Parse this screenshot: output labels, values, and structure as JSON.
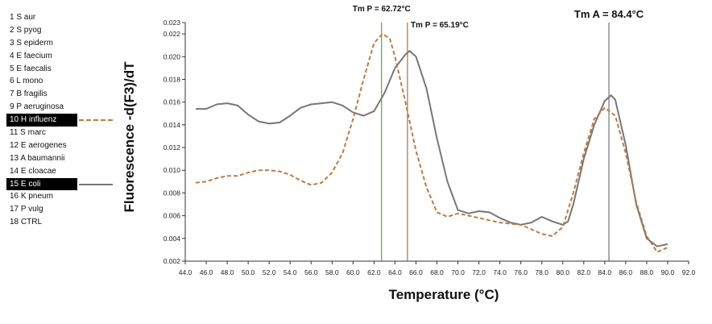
{
  "sidebar": {
    "items": [
      {
        "label": "1 S aur"
      },
      {
        "label": "2 S pyog"
      },
      {
        "label": "3 S epiderm"
      },
      {
        "label": "4 E faecium"
      },
      {
        "label": "5 E faecalis"
      },
      {
        "label": "6 L mono"
      },
      {
        "label": "7 B fragilis"
      },
      {
        "label": "9 P aeruginosa"
      },
      {
        "label": "10 H influenz",
        "selected": true,
        "line_style": "dashed",
        "color": "#c07a3e"
      },
      {
        "label": "11 S marc"
      },
      {
        "label": "12 E aerogenes"
      },
      {
        "label": "13 A baumannii"
      },
      {
        "label": "14 E cloacae"
      },
      {
        "label": "15 E coli",
        "selected": true,
        "line_style": "solid",
        "color": "#777777"
      },
      {
        "label": "16 K pneum"
      },
      {
        "label": "17 P vulg"
      },
      {
        "label": "18 CTRL"
      }
    ]
  },
  "chart_data": {
    "type": "line",
    "xlabel": "Temperature (°C)",
    "ylabel": "Fluorescence -d(F3)/dT",
    "xlim": [
      44.0,
      92.0
    ],
    "ylim": [
      0.002,
      0.023
    ],
    "x_ticks": [
      "44.0",
      "46.0",
      "48.0",
      "50.0",
      "52.0",
      "54.0",
      "56.0",
      "58.0",
      "60.0",
      "62.0",
      "64.0",
      "66.0",
      "68.0",
      "70.0",
      "72.0",
      "74.0",
      "76.0",
      "78.0",
      "80.0",
      "82.0",
      "84.0",
      "86.0",
      "88.0",
      "90.0",
      "92.0"
    ],
    "y_ticks": [
      "0.002",
      "0.004",
      "0.006",
      "0.008",
      "0.010",
      "0.012",
      "0.014",
      "0.016",
      "0.018",
      "0.020",
      "0.022",
      "0.023"
    ],
    "grid": false,
    "series": [
      {
        "name": "15 E coli",
        "color": "#777777",
        "style": "solid",
        "points": [
          [
            45.0,
            0.0154
          ],
          [
            46.0,
            0.0154
          ],
          [
            47.0,
            0.0158
          ],
          [
            48.0,
            0.0159
          ],
          [
            49.0,
            0.0157
          ],
          [
            50.0,
            0.0149
          ],
          [
            51.0,
            0.0143
          ],
          [
            52.0,
            0.0141
          ],
          [
            53.0,
            0.0142
          ],
          [
            54.0,
            0.0148
          ],
          [
            55.0,
            0.0155
          ],
          [
            56.0,
            0.0158
          ],
          [
            57.0,
            0.0159
          ],
          [
            58.0,
            0.016
          ],
          [
            59.0,
            0.0157
          ],
          [
            60.0,
            0.0151
          ],
          [
            61.0,
            0.0148
          ],
          [
            62.0,
            0.0152
          ],
          [
            63.0,
            0.0168
          ],
          [
            64.0,
            0.019
          ],
          [
            65.0,
            0.0202
          ],
          [
            65.4,
            0.0205
          ],
          [
            66.0,
            0.02
          ],
          [
            67.0,
            0.0172
          ],
          [
            68.0,
            0.0128
          ],
          [
            69.0,
            0.009
          ],
          [
            70.0,
            0.0065
          ],
          [
            71.0,
            0.0062
          ],
          [
            72.0,
            0.0064
          ],
          [
            73.0,
            0.0063
          ],
          [
            74.0,
            0.0058
          ],
          [
            75.0,
            0.0054
          ],
          [
            76.0,
            0.0052
          ],
          [
            77.0,
            0.0054
          ],
          [
            78.0,
            0.0059
          ],
          [
            79.0,
            0.0055
          ],
          [
            80.0,
            0.0052
          ],
          [
            80.5,
            0.0055
          ],
          [
            81.0,
            0.007
          ],
          [
            82.0,
            0.011
          ],
          [
            83.0,
            0.014
          ],
          [
            84.0,
            0.0161
          ],
          [
            84.6,
            0.0166
          ],
          [
            85.0,
            0.0162
          ],
          [
            86.0,
            0.0122
          ],
          [
            87.0,
            0.007
          ],
          [
            88.0,
            0.004
          ],
          [
            89.0,
            0.0033
          ],
          [
            90.0,
            0.0035
          ]
        ]
      },
      {
        "name": "10 H influenz",
        "color": "#c07a3e",
        "style": "dashed",
        "points": [
          [
            45.0,
            0.0089
          ],
          [
            46.0,
            0.009
          ],
          [
            47.0,
            0.0093
          ],
          [
            48.0,
            0.0095
          ],
          [
            49.0,
            0.0095
          ],
          [
            50.0,
            0.0098
          ],
          [
            51.0,
            0.01
          ],
          [
            52.0,
            0.01
          ],
          [
            53.0,
            0.0099
          ],
          [
            54.0,
            0.0096
          ],
          [
            55.0,
            0.0091
          ],
          [
            56.0,
            0.0087
          ],
          [
            57.0,
            0.0089
          ],
          [
            58.0,
            0.0098
          ],
          [
            59.0,
            0.0115
          ],
          [
            60.0,
            0.0145
          ],
          [
            61.0,
            0.018
          ],
          [
            62.0,
            0.0212
          ],
          [
            62.8,
            0.022
          ],
          [
            63.5,
            0.0216
          ],
          [
            64.0,
            0.02
          ],
          [
            65.0,
            0.016
          ],
          [
            66.0,
            0.0117
          ],
          [
            67.0,
            0.0085
          ],
          [
            68.0,
            0.0063
          ],
          [
            69.0,
            0.0059
          ],
          [
            70.0,
            0.0062
          ],
          [
            71.0,
            0.006
          ],
          [
            72.0,
            0.0058
          ],
          [
            73.0,
            0.0056
          ],
          [
            74.0,
            0.0054
          ],
          [
            75.0,
            0.0053
          ],
          [
            76.0,
            0.0052
          ],
          [
            77.0,
            0.0048
          ],
          [
            78.0,
            0.0044
          ],
          [
            79.0,
            0.0042
          ],
          [
            80.0,
            0.005
          ],
          [
            81.0,
            0.008
          ],
          [
            82.0,
            0.0115
          ],
          [
            83.0,
            0.0145
          ],
          [
            84.0,
            0.0155
          ],
          [
            85.0,
            0.0148
          ],
          [
            86.0,
            0.0115
          ],
          [
            87.0,
            0.0072
          ],
          [
            88.0,
            0.0042
          ],
          [
            89.0,
            0.0028
          ],
          [
            90.0,
            0.0032
          ]
        ]
      }
    ],
    "annotations": [
      {
        "label": "Tm P = 62.72°C",
        "x": 62.72,
        "color": "#2a9a2a"
      },
      {
        "label": "Tm P = 65.19°C",
        "x": 65.19,
        "color": "#8b5a2b"
      },
      {
        "label": "Tm A = 84.4°C",
        "x": 84.4,
        "color": "#555566"
      }
    ]
  }
}
